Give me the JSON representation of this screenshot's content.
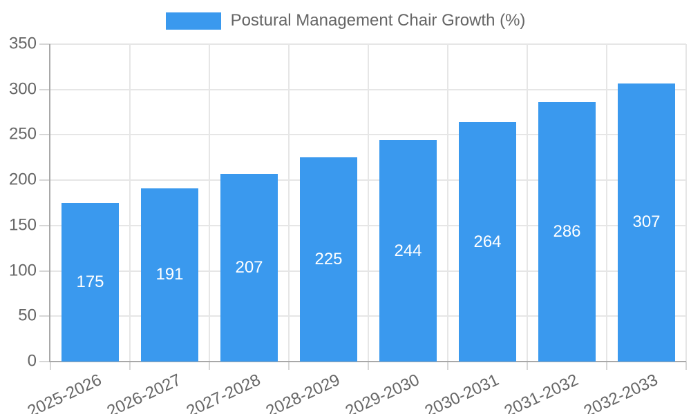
{
  "chart_data": {
    "type": "bar",
    "title": "Postural Management Chair Growth (%)",
    "legend": "Postural Management Chair Growth (%)",
    "legend_position": "top",
    "categories": [
      "2025-2026",
      "2026-2027",
      "2027-2028",
      "2028-2029",
      "2029-2030",
      "2030-2031",
      "2031-2032",
      "2032-2033"
    ],
    "values": [
      175,
      191,
      207,
      225,
      244,
      264,
      286,
      307
    ],
    "xlabel": "",
    "ylabel": "",
    "ylim": [
      0,
      350
    ],
    "ytick_step": 50,
    "grid": "on",
    "value_labels": "inside-center",
    "colors": {
      "bar": "#3a99ee",
      "value_label": "#ffffff",
      "tick_text": "#666666",
      "legend_text": "#666666",
      "gridline": "#e6e6e6",
      "tick_mark": "#d6d6d6",
      "axis_line": "#a8a8a8",
      "background": "#ffffff"
    }
  }
}
